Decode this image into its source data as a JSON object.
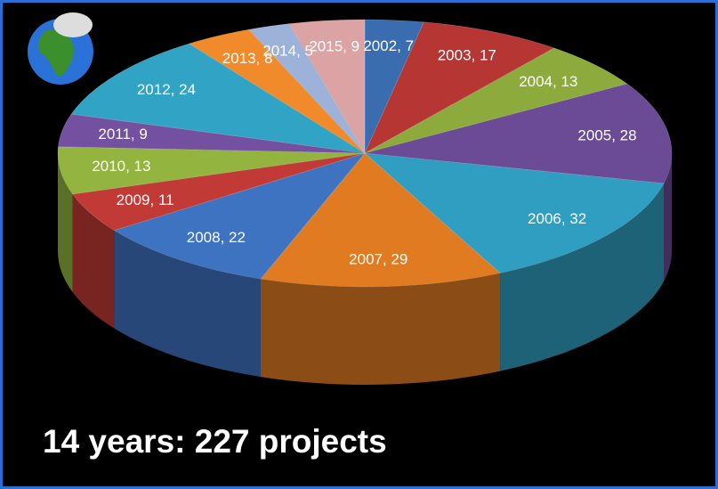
{
  "chart_data": {
    "type": "pie3d",
    "title": "14 years: 227 projects",
    "categories": [
      "2002, 7",
      "2003, 17",
      "2004, 13",
      "2005, 28",
      "2006, 32",
      "2007, 29",
      "2008, 22",
      "2009, 11",
      "2010, 13",
      "2011, 9",
      "2012, 24",
      "2013, 8",
      "2014, 5",
      "2015, 9"
    ],
    "values": [
      7,
      17,
      13,
      28,
      32,
      29,
      22,
      11,
      13,
      9,
      24,
      8,
      5,
      9
    ],
    "colors": [
      "#3a6db0",
      "#b53633",
      "#8dab3c",
      "#6b4a96",
      "#2f9ec0",
      "#e07b22",
      "#3d73c0",
      "#c23a36",
      "#93b43f",
      "#7451a0",
      "#31a3c4",
      "#f08a2a",
      "#9db2d8",
      "#dba3a3"
    ]
  }
}
